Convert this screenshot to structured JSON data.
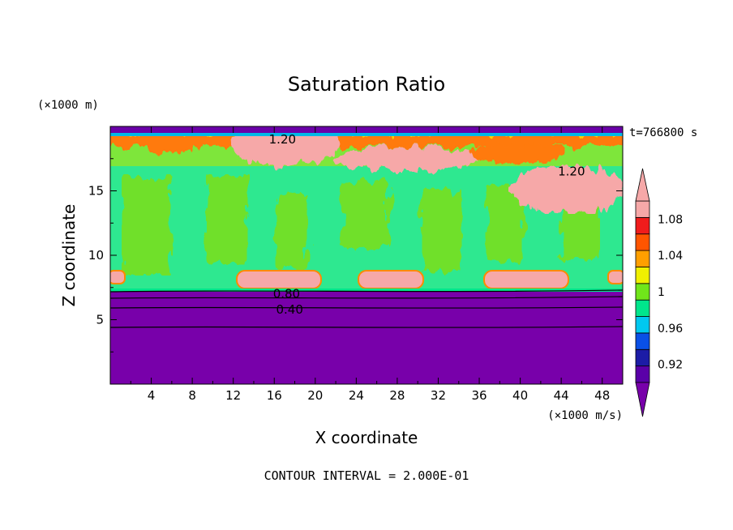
{
  "chart_data": {
    "type": "heatmap",
    "title": "Saturation Ratio",
    "xlabel": "X coordinate",
    "ylabel": "Z coordinate",
    "x_unit": "(×1000 m/s)",
    "y_unit": "(×1000 m)",
    "time_label": "t=766800 s",
    "footer": "CONTOUR INTERVAL = 2.000E-01",
    "xlim": [
      0,
      50
    ],
    "ylim": [
      0,
      20
    ],
    "x_ticks": [
      "4",
      "8",
      "12",
      "16",
      "20",
      "24",
      "28",
      "32",
      "36",
      "40",
      "44",
      "48"
    ],
    "x_tick_values": [
      4,
      8,
      12,
      16,
      20,
      24,
      28,
      32,
      36,
      40,
      44,
      48
    ],
    "y_ticks": [
      "5",
      "10",
      "15"
    ],
    "y_tick_values": [
      5,
      10,
      15
    ],
    "colorbar": {
      "labels": [
        "1.08",
        "1.04",
        "1",
        "0.96",
        "0.92"
      ],
      "label_values": [
        1.08,
        1.04,
        1.0,
        0.96,
        0.92
      ],
      "levels": [
        0.9,
        0.92,
        0.94,
        0.96,
        0.98,
        1.0,
        1.02,
        1.04,
        1.06,
        1.08,
        1.1
      ],
      "colors": [
        "#5a00a8",
        "#1c1ca6",
        "#0a50e6",
        "#00c8f0",
        "#00e68c",
        "#70e61a",
        "#f0f000",
        "#ff9f00",
        "#ff5500",
        "#f01c1c",
        "#f6a8a8"
      ],
      "under_color": "#7800aa",
      "over_color": "#f6a8a8"
    },
    "contour_labels": [
      {
        "text": "1.20",
        "x": 16.8,
        "z": 19.0
      },
      {
        "text": "1.20",
        "x": 45.0,
        "z": 16.5
      },
      {
        "text": "0.80",
        "x": 17.2,
        "z": 7.0
      },
      {
        "text": "0.40",
        "x": 17.5,
        "z": 5.8
      }
    ]
  }
}
